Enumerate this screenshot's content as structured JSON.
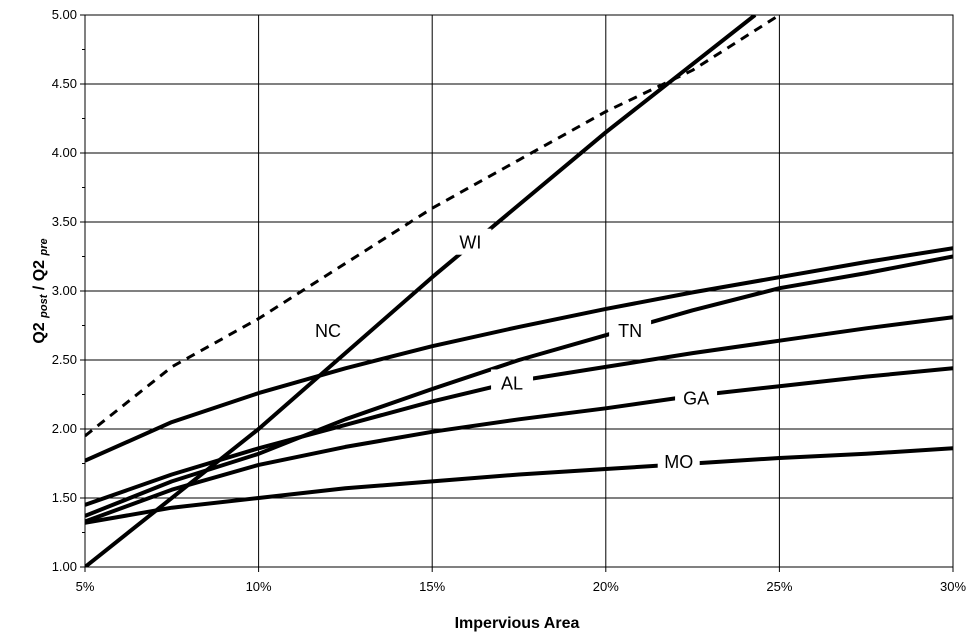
{
  "chart_data": {
    "type": "line",
    "title": "",
    "xlabel": "Impervious Area",
    "ylabel_main": "Q2",
    "ylabel_sub1": "post",
    "ylabel_sep": " / ",
    "ylabel_main2": "Q2",
    "ylabel_sub2": "pre",
    "xlim": [
      5,
      30
    ],
    "ylim": [
      1.0,
      5.0
    ],
    "x_ticks": [
      5,
      10,
      15,
      20,
      25,
      30
    ],
    "x_tick_labels": [
      "5%",
      "10%",
      "15%",
      "20%",
      "25%",
      "30%"
    ],
    "y_ticks": [
      1.0,
      1.5,
      2.0,
      2.5,
      3.0,
      3.5,
      4.0,
      4.5,
      5.0
    ],
    "y_tick_labels": [
      "1.00",
      "1.50",
      "2.00",
      "2.50",
      "3.00",
      "3.50",
      "4.00",
      "4.50",
      "5.00"
    ],
    "grid": true,
    "series": [
      {
        "name": "WI",
        "style": "solid",
        "x": [
          5,
          10,
          15,
          20,
          24.3
        ],
        "y": [
          1.0,
          2.0,
          3.1,
          4.15,
          5.0
        ],
        "label_at": [
          16.1,
          3.35
        ]
      },
      {
        "name": "",
        "style": "dashed",
        "x": [
          5,
          7.5,
          10,
          12.5,
          15,
          17.5,
          20,
          22.5,
          25
        ],
        "y": [
          1.95,
          2.45,
          2.8,
          3.2,
          3.6,
          3.95,
          4.3,
          4.6,
          5.0
        ]
      },
      {
        "name": "NC",
        "style": "solid",
        "x": [
          5,
          7.5,
          10,
          12.5,
          15,
          17.5,
          20,
          22.5,
          25,
          27.5,
          30
        ],
        "y": [
          1.77,
          2.05,
          2.26,
          2.44,
          2.6,
          2.74,
          2.87,
          2.99,
          3.1,
          3.21,
          3.31
        ],
        "label_at": [
          12.0,
          2.71
        ]
      },
      {
        "name": "TN",
        "style": "solid",
        "x": [
          5,
          7.5,
          10,
          12.5,
          15,
          17.5,
          20,
          22.5,
          25,
          27.5,
          30
        ],
        "y": [
          1.37,
          1.62,
          1.82,
          2.07,
          2.29,
          2.5,
          2.68,
          2.86,
          3.02,
          3.13,
          3.25
        ],
        "label_at": [
          20.7,
          2.71
        ]
      },
      {
        "name": "AL",
        "style": "solid",
        "x": [
          5,
          7.5,
          10,
          12.5,
          15,
          17.5,
          20,
          22.5,
          25,
          27.5,
          30
        ],
        "y": [
          1.45,
          1.67,
          1.86,
          2.03,
          2.2,
          2.35,
          2.45,
          2.55,
          2.64,
          2.73,
          2.81
        ],
        "label_at": [
          17.3,
          2.33
        ]
      },
      {
        "name": "GA",
        "style": "solid",
        "x": [
          5,
          7.5,
          10,
          12.5,
          15,
          17.5,
          20,
          22.5,
          25,
          27.5,
          30
        ],
        "y": [
          1.33,
          1.56,
          1.74,
          1.87,
          1.98,
          2.07,
          2.15,
          2.24,
          2.31,
          2.38,
          2.44
        ],
        "label_at": [
          22.6,
          2.22
        ]
      },
      {
        "name": "MO",
        "style": "solid",
        "x": [
          5,
          7.5,
          10,
          12.5,
          15,
          17.5,
          20,
          22.5,
          25,
          27.5,
          30
        ],
        "y": [
          1.32,
          1.43,
          1.5,
          1.57,
          1.62,
          1.67,
          1.71,
          1.75,
          1.79,
          1.82,
          1.86
        ],
        "label_at": [
          22.1,
          1.76
        ]
      }
    ]
  }
}
